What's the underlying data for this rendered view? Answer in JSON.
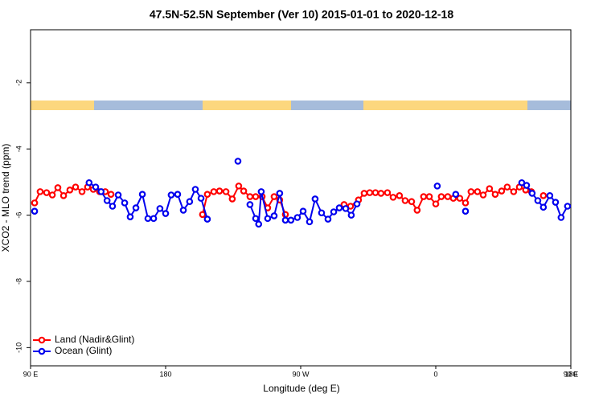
{
  "chart_data": {
    "type": "line",
    "title": "47.5N-52.5N September (Ver 10)   2015-01-01 to 2020-12-18",
    "x_label": "Longitude (deg E)",
    "y_label": "XCO2 - MLO trend (ppm)",
    "xlim": [
      90,
      450
    ],
    "ylim": [
      -10.55,
      -0.4
    ],
    "xticks": [
      {
        "value": 90,
        "label": "90 E"
      },
      {
        "value": 180,
        "label": "180"
      },
      {
        "value": 270,
        "label": "90 W"
      },
      {
        "value": 360,
        "label": "0"
      },
      {
        "value": 450,
        "label": "90 E"
      },
      {
        "value": 540,
        "label": "180"
      }
    ],
    "yticks": [
      -10,
      -8,
      -6,
      -4,
      -2
    ],
    "legend": "bottom-left",
    "series": [
      {
        "name": "Land (Nadir&Glint)",
        "color": "#ff0000",
        "x": [
          92.7,
          96.4,
          100.7,
          104.5,
          108.2,
          112,
          116.2,
          120,
          124.3,
          128,
          131.8,
          136,
          139.8,
          143.6,
          170,
          204.6,
          207.8,
          212.1,
          215.9,
          220.2,
          224.4,
          228.7,
          232,
          236.2,
          240,
          244.3,
          248,
          252.3,
          256,
          259.8,
          280,
          298.9,
          303.2,
          308.5,
          312.3,
          316,
          319.8,
          323.5,
          327.8,
          331.6,
          335.8,
          339.6,
          343.9,
          347.6,
          351.9,
          355.7,
          360,
          363.7,
          368,
          371.7,
          376,
          379.8,
          383.5,
          387.8,
          391.6,
          395.8,
          399.6,
          403.9,
          407.6,
          411.9,
          415.7,
          419.9,
          423.7,
          427.5,
          431.7
        ],
        "values": [
          -5.63,
          -5.29,
          -5.32,
          -5.39,
          -5.17,
          -5.41,
          -5.24,
          -5.15,
          -5.29,
          -5.15,
          -5.22,
          -5.29,
          -5.29,
          -5.37,
          null,
          -5.98,
          -5.37,
          -5.29,
          -5.27,
          -5.29,
          -5.51,
          -5.12,
          -5.27,
          -5.44,
          -5.44,
          -5.44,
          -5.78,
          -5.44,
          -5.54,
          -5.98,
          null,
          -5.68,
          -5.73,
          -5.54,
          -5.34,
          -5.32,
          -5.32,
          -5.34,
          -5.32,
          -5.46,
          -5.41,
          -5.56,
          -5.59,
          -5.85,
          -5.44,
          -5.44,
          -5.66,
          -5.44,
          -5.44,
          -5.49,
          -5.49,
          -5.63,
          -5.29,
          -5.29,
          -5.39,
          -5.2,
          -5.37,
          -5.27,
          -5.15,
          -5.29,
          -5.15,
          -5.24,
          -5.29,
          null,
          -5.41
        ]
      },
      {
        "name": "Ocean (Glint)",
        "color": "#0000ee",
        "x": [
          92.7,
          110,
          129,
          133.4,
          137,
          141,
          144.6,
          148.4,
          152.7,
          156.4,
          160.2,
          164.5,
          168.2,
          172,
          176.2,
          180,
          183.7,
          188,
          191.8,
          196,
          199.8,
          203.6,
          207.8,
          218,
          228.2,
          232,
          236.2,
          240,
          242,
          243.7,
          248,
          252.3,
          256,
          259.8,
          263.5,
          267.8,
          271.6,
          275.9,
          279.6,
          283.9,
          288.2,
          292,
          295.7,
          300,
          303.7,
          307.5,
          335,
          361,
          367,
          373.3,
          376,
          379.8,
          400,
          417.3,
          420.5,
          424.2,
          428,
          431.7,
          436,
          439.8,
          443.5,
          447.8
        ],
        "values": [
          -5.88,
          null,
          -5.02,
          -5.15,
          -5.29,
          -5.56,
          -5.73,
          -5.39,
          -5.63,
          -6.05,
          -5.78,
          -5.37,
          -6.1,
          -6.1,
          -5.8,
          -5.95,
          -5.39,
          -5.37,
          -5.85,
          -5.59,
          -5.22,
          -5.49,
          -6.12,
          null,
          -4.37,
          null,
          -5.68,
          -6.1,
          -6.27,
          -5.29,
          -6.1,
          -6.02,
          -5.34,
          -6.15,
          -6.15,
          -6.07,
          -5.88,
          -6.2,
          -5.51,
          -5.93,
          -6.12,
          -5.9,
          -5.78,
          -5.8,
          -6.0,
          -5.66,
          null,
          -5.12,
          null,
          -5.37,
          null,
          -5.88,
          null,
          -5.02,
          -5.1,
          -5.34,
          -5.56,
          -5.76,
          -5.41,
          -5.61,
          -6.07,
          -5.73
        ]
      }
    ]
  }
}
